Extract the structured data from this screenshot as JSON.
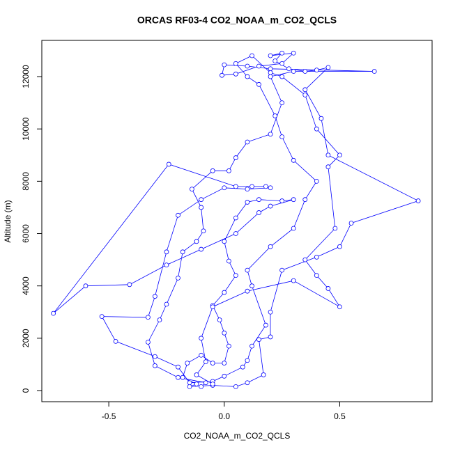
{
  "chart_data": {
    "type": "line",
    "title": "ORCAS RF03-4 CO2_NOAA_m_CO2_QCLS",
    "x_label": "CO2_NOAA_m_CO2_QCLS",
    "y_label": "Altitude (m)",
    "x": [
      -0.1,
      -0.08,
      -0.2,
      -0.3,
      -0.33,
      -0.28,
      -0.25,
      -0.2,
      -0.18,
      -0.12,
      -0.09,
      -0.1,
      -0.14,
      -0.05,
      0.02,
      0.05,
      0.1,
      0.2,
      0.25,
      0.2,
      0.3,
      0.65,
      0.2,
      0.1,
      0,
      -0.01,
      0.05,
      0.15,
      0.25,
      0.3,
      0.2,
      0.25,
      0.22,
      0.28,
      0.35,
      0.4,
      0.45,
      0.35,
      0.42,
      0.45,
      0.84,
      0.55,
      0.5,
      0.4,
      0.25,
      0.2,
      0.2,
      0.15,
      0.17,
      0.1,
      0.05,
      -0.05,
      -0.15,
      -0.12,
      -0.18,
      -0.16,
      -0.1,
      -0.05,
      0,
      0.02,
      0,
      -0.02,
      -0.05,
      0,
      0.05,
      0.02,
      0,
      0.05,
      0.1,
      0.15,
      0.25,
      0.3,
      0.2,
      0.15,
      0.05,
      -0.1,
      -0.25,
      -0.41,
      -0.6,
      -0.74,
      -0.24,
      0.05,
      0.12,
      0.18,
      0.2,
      0.1,
      0,
      -0.1,
      -0.2,
      -0.25,
      -0.3,
      -0.33,
      -0.53,
      -0.47,
      -0.3,
      -0.2,
      -0.15,
      -0.05,
      0,
      0.08,
      0.1,
      0.12,
      0.18,
      0.12,
      0.1,
      0.2,
      0.3,
      0.35,
      0.4,
      0.3,
      0.25,
      0.22,
      0.15,
      0.1,
      0.05,
      0.12,
      0.2,
      0.25,
      0.35,
      0.4,
      0.5,
      0.45,
      0.48,
      0.35,
      0.4,
      0.45,
      0.5,
      0.3,
      0.1,
      -0.05,
      -0.1,
      -0.08,
      -0.12,
      -0.05
    ],
    "series": [
      {
        "color": "#0000ff",
        "values": [
          150,
          300,
          500,
          950,
          1850,
          2700,
          3300,
          4300,
          5300,
          5700,
          6100,
          7000,
          7700,
          8400,
          8400,
          8900,
          9500,
          9800,
          11000,
          12000,
          12200,
          12200,
          12300,
          12400,
          12450,
          12050,
          12100,
          12400,
          12500,
          12900,
          12800,
          12900,
          12600,
          12300,
          12200,
          12250,
          12350,
          11500,
          10400,
          9000,
          7250,
          6400,
          5500,
          5100,
          4600,
          3000,
          2050,
          1950,
          600,
          300,
          150,
          200,
          150,
          250,
          500,
          1050,
          1350,
          1050,
          1050,
          1700,
          2200,
          2700,
          3250,
          3750,
          4400,
          4950,
          5700,
          6600,
          7200,
          7300,
          7250,
          7300,
          7050,
          6800,
          6000,
          5400,
          4800,
          4050,
          4000,
          2950,
          8650,
          7800,
          7800,
          7800,
          7750,
          7700,
          7750,
          7300,
          6700,
          5300,
          3600,
          2800,
          2830,
          1880,
          1300,
          900,
          300,
          350,
          550,
          900,
          1150,
          1700,
          2500,
          4000,
          4600,
          5500,
          6200,
          7300,
          8000,
          8800,
          9700,
          10500,
          11700,
          12000,
          12500,
          12800,
          12150,
          12000,
          11300,
          10000,
          9000,
          8550,
          6200,
          5000,
          4400,
          3900,
          3200,
          4200,
          3800,
          3200,
          2000,
          1100,
          600,
          250
        ]
      }
    ],
    "xlim": [
      -0.79,
      0.9
    ],
    "ylim": [
      -426,
      13385
    ],
    "xticks": [
      -0.5,
      {
        "value": 0,
        "label": "0.0"
      },
      0.5
    ],
    "yticks": [
      0,
      2000,
      4000,
      6000,
      8000,
      10000,
      12000
    ]
  }
}
